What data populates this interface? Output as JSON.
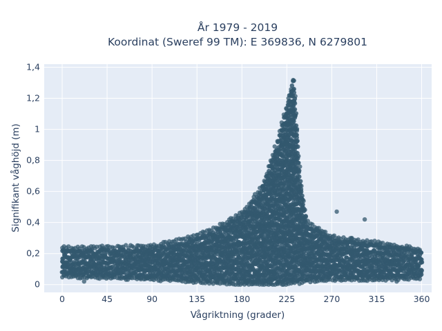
{
  "chart_data": {
    "type": "scatter",
    "title": "År 1979 - 2019",
    "subtitle": "Koordinat (Sweref 99 TM): E 369836, N 6279801",
    "xlabel": "Vågriktning (grader)",
    "ylabel": "Signifikant våghöjd (m)",
    "xlim": [
      -18,
      370
    ],
    "ylim": [
      -0.05,
      1.42
    ],
    "xticks": [
      0,
      45,
      90,
      135,
      180,
      225,
      270,
      315,
      360
    ],
    "xtick_labels": [
      "0",
      "45",
      "90",
      "135",
      "180",
      "225",
      "270",
      "315",
      "360"
    ],
    "yticks": [
      0,
      0.2,
      0.4,
      0.6,
      0.8,
      1,
      1.2,
      1.4
    ],
    "ytick_labels": [
      "0",
      "0,2",
      "0,4",
      "0,6",
      "0,8",
      "1",
      "1,2",
      "1,4"
    ],
    "grid": true,
    "colors": {
      "marker": "#33586e",
      "plot_bg": "#e5ecf6",
      "grid": "#ffffff",
      "text": "#2a3f5f"
    },
    "envelope": [
      {
        "x": 0,
        "min": 0.06,
        "max": 0.23
      },
      {
        "x": 45,
        "min": 0.05,
        "max": 0.23
      },
      {
        "x": 90,
        "min": 0.04,
        "max": 0.24
      },
      {
        "x": 120,
        "min": 0.03,
        "max": 0.28
      },
      {
        "x": 150,
        "min": 0.02,
        "max": 0.34
      },
      {
        "x": 180,
        "min": 0.01,
        "max": 0.45
      },
      {
        "x": 200,
        "min": 0.01,
        "max": 0.62
      },
      {
        "x": 215,
        "min": 0.01,
        "max": 0.9
      },
      {
        "x": 225,
        "min": 0.01,
        "max": 1.15
      },
      {
        "x": 232,
        "min": 0.02,
        "max": 1.34
      },
      {
        "x": 238,
        "min": 0.02,
        "max": 0.7
      },
      {
        "x": 245,
        "min": 0.03,
        "max": 0.4
      },
      {
        "x": 270,
        "min": 0.04,
        "max": 0.3
      },
      {
        "x": 315,
        "min": 0.04,
        "max": 0.26
      },
      {
        "x": 360,
        "min": 0.05,
        "max": 0.22
      }
    ],
    "outliers": [
      {
        "x": 275,
        "y": 0.47
      },
      {
        "x": 303,
        "y": 0.42
      },
      {
        "x": 258,
        "y": 0.32
      },
      {
        "x": 290,
        "y": 0.3
      },
      {
        "x": 318,
        "y": 0.26
      },
      {
        "x": 345,
        "y": 0.25
      },
      {
        "x": 40,
        "y": 0.25
      },
      {
        "x": 88,
        "y": 0.24
      },
      {
        "x": 150,
        "y": 0.32
      },
      {
        "x": 22,
        "y": 0.02
      },
      {
        "x": 335,
        "y": 0.02
      }
    ]
  }
}
